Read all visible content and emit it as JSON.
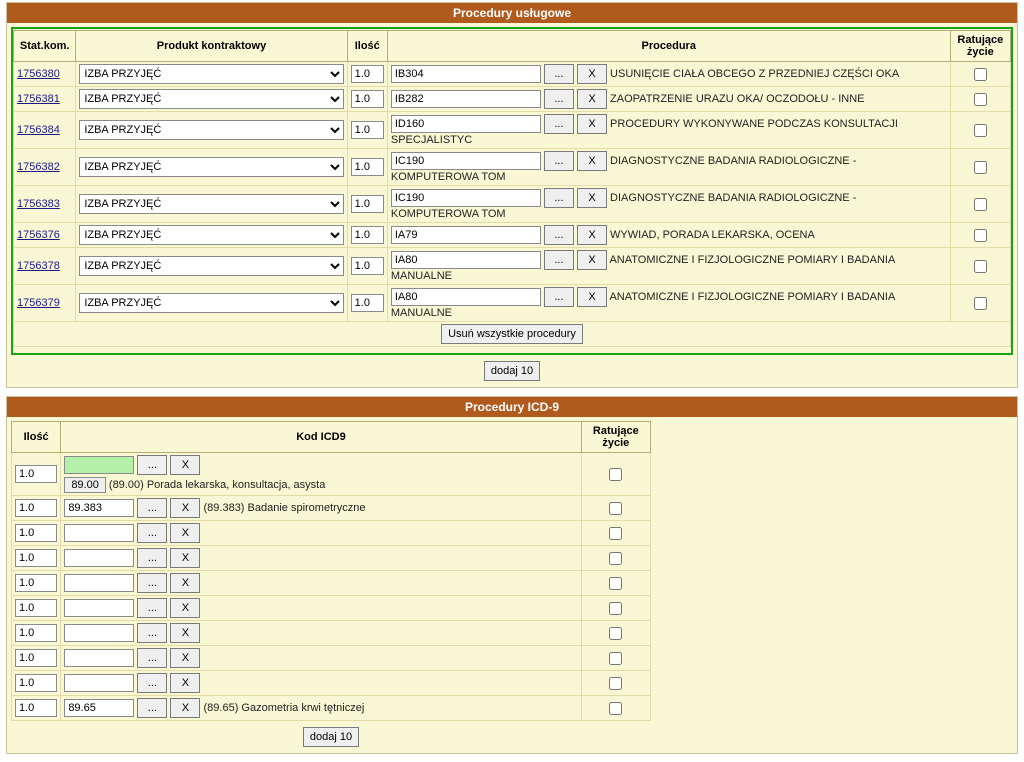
{
  "section1": {
    "title": "Procedury usługowe",
    "headers": {
      "stat": "Stat.kom.",
      "product": "Produkt kontraktowy",
      "qty": "Ilość",
      "procedure": "Procedura",
      "lifesaving": "Ratujące życie"
    },
    "product_option": "IZBA PRZYJĘĆ",
    "rows": [
      {
        "stat": "1756380",
        "qty": "1.0",
        "code": "IB304",
        "desc": "USUNIĘCIE CIAŁA OBCEGO Z PRZEDNIEJ CZĘŚCI OKA"
      },
      {
        "stat": "1756381",
        "qty": "1.0",
        "code": "IB282",
        "desc": "ZAOPATRZENIE URAZU OKA/ OCZODOŁU - INNE"
      },
      {
        "stat": "1756384",
        "qty": "1.0",
        "code": "ID160",
        "desc": "PROCEDURY WYKONYWANE PODCZAS KONSULTACJI SPECJALISTYC"
      },
      {
        "stat": "1756382",
        "qty": "1.0",
        "code": "IC190",
        "desc": "DIAGNOSTYCZNE BADANIA RADIOLOGICZNE - KOMPUTEROWA TOM"
      },
      {
        "stat": "1756383",
        "qty": "1.0",
        "code": "IC190",
        "desc": "DIAGNOSTYCZNE BADANIA RADIOLOGICZNE - KOMPUTEROWA TOM"
      },
      {
        "stat": "1756376",
        "qty": "1.0",
        "code": "IA79",
        "desc": "WYWIAD, PORADA LEKARSKA, OCENA"
      },
      {
        "stat": "1756378",
        "qty": "1.0",
        "code": "IA80",
        "desc": "ANATOMICZNE I FIZJOLOGICZNE POMIARY I BADANIA MANUALNE"
      },
      {
        "stat": "1756379",
        "qty": "1.0",
        "code": "IA80",
        "desc": "ANATOMICZNE I FIZJOLOGICZNE POMIARY I BADANIA MANUALNE"
      }
    ],
    "btn_dots": "...",
    "btn_x": "X",
    "btn_remove_all": "Usuń wszystkie procedury",
    "btn_add10": "dodaj 10"
  },
  "section2": {
    "title": "Procedury ICD-9",
    "headers": {
      "qty": "Ilość",
      "code": "Kod ICD9",
      "lifesaving": "Ratujące życie"
    },
    "suggest": {
      "btn": "89.00",
      "text": "(89.00) Porada lekarska, konsultacja, asysta"
    },
    "rows": [
      {
        "qty": "1.0",
        "code": "",
        "desc": "",
        "highlight": true,
        "suggest": true
      },
      {
        "qty": "1.0",
        "code": "89.383",
        "desc": "(89.383) Badanie spirometryczne"
      },
      {
        "qty": "1.0",
        "code": "",
        "desc": ""
      },
      {
        "qty": "1.0",
        "code": "",
        "desc": ""
      },
      {
        "qty": "1.0",
        "code": "",
        "desc": ""
      },
      {
        "qty": "1.0",
        "code": "",
        "desc": ""
      },
      {
        "qty": "1.0",
        "code": "",
        "desc": ""
      },
      {
        "qty": "1.0",
        "code": "",
        "desc": ""
      },
      {
        "qty": "1.0",
        "code": "",
        "desc": ""
      },
      {
        "qty": "1.0",
        "code": "89.65",
        "desc": "(89.65) Gazometria krwi tętniczej"
      }
    ],
    "btn_dots": "...",
    "btn_x": "X",
    "btn_add10": "dodaj 10"
  }
}
